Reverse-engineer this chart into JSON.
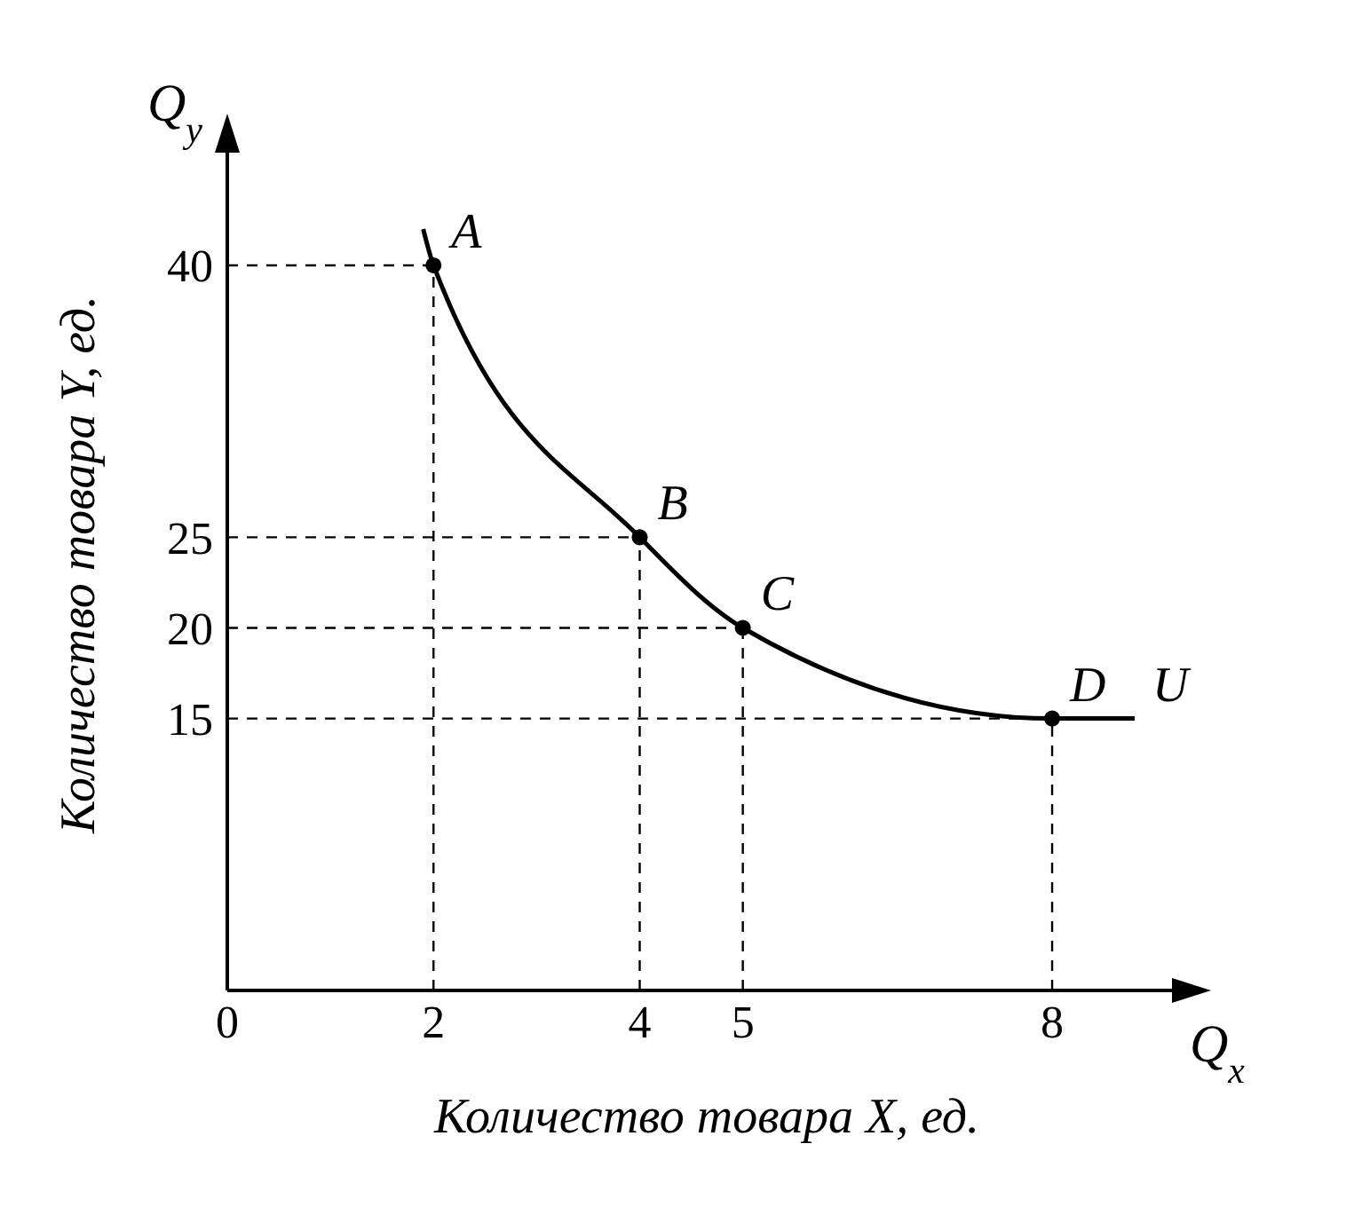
{
  "chart_data": {
    "type": "line",
    "xlabel": "Количество товара X, ед.",
    "ylabel": "Количество товара Y, ед.",
    "xlim": [
      0,
      9.3
    ],
    "xticks": [
      0,
      2,
      4,
      5,
      8
    ],
    "ylim": [
      0,
      47
    ],
    "yticks": [
      15,
      20,
      25,
      40
    ],
    "series": [
      {
        "color": "#000000",
        "marker": "none",
        "x": [
          1.9,
          2,
          4,
          5,
          8,
          8.8
        ],
        "values": [
          42,
          40,
          25,
          20,
          15,
          15
        ]
      },
      {
        "type": "scatter",
        "color": "#000000",
        "marker": "circle",
        "x": [
          2,
          4,
          5,
          8
        ],
        "values": [
          40,
          25,
          20,
          15
        ]
      }
    ],
    "annotations": [
      "Q$_{y}$",
      "Q$_{x}$",
      {
        "text": "A",
        "x": 2,
        "y": 40
      },
      {
        "text": "B",
        "x": 4,
        "y": 25
      },
      {
        "text": "C",
        "x": 5,
        "y": 20
      },
      {
        "text": "D",
        "x": 8,
        "y": 15
      },
      {
        "text": "U",
        "x": 8.8,
        "y": 15
      }
    ]
  }
}
